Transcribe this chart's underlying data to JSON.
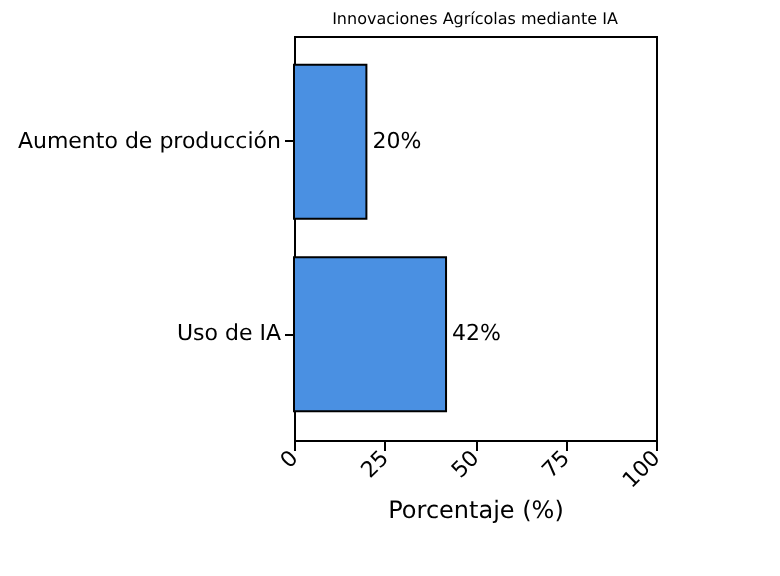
{
  "chart_data": {
    "type": "bar",
    "orientation": "horizontal",
    "title": "Innovaciones Agrícolas mediante IA",
    "xlabel": "Porcentaje (%)",
    "categories": [
      "Aumento de producción",
      "Uso de IA"
    ],
    "values": [
      20,
      42
    ],
    "value_labels": [
      "20%",
      "42%"
    ],
    "color": "#4a90e2",
    "xlim": [
      0,
      100
    ],
    "xticks": [
      0,
      25,
      50,
      75,
      100
    ],
    "grid": false
  }
}
